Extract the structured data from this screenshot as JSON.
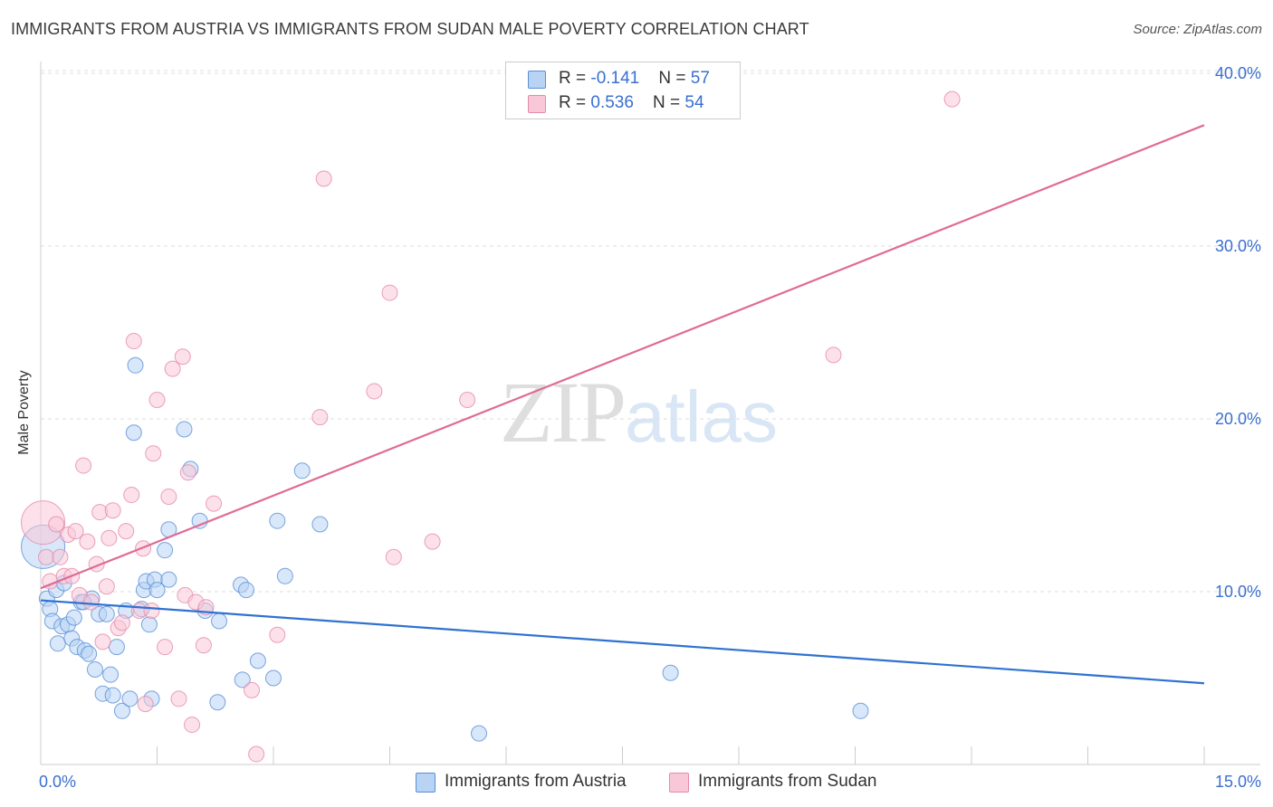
{
  "title": "IMMIGRANTS FROM AUSTRIA VS IMMIGRANTS FROM SUDAN MALE POVERTY CORRELATION CHART",
  "source": "Source: ZipAtlas.com",
  "watermark": {
    "zip": "ZIP",
    "atlas": "atlas"
  },
  "legend": {
    "austria": {
      "r_label": "R = ",
      "r_value": "-0.141",
      "n_label": "N = ",
      "n_value": "57"
    },
    "sudan": {
      "r_label": "R = ",
      "r_value": "0.536",
      "n_label": "N = ",
      "n_value": "54"
    }
  },
  "bottom_legend": {
    "austria": "Immigrants from Austria",
    "sudan": "Immigrants from Sudan"
  },
  "colors": {
    "austria_fill": "#b8d3f4",
    "austria_stroke": "#5a8fd6",
    "austria_line": "#2f72d0",
    "sudan_fill": "#f9c8d8",
    "sudan_stroke": "#e58aa8",
    "sudan_line": "#e06b96",
    "axis_label_blue": "#3a6fd0",
    "grid": "#dddddd"
  },
  "chart_data": {
    "type": "scatter",
    "title": "IMMIGRANTS FROM AUSTRIA VS IMMIGRANTS FROM SUDAN MALE POVERTY CORRELATION CHART",
    "xlabel": "",
    "ylabel": "Male Poverty",
    "xlim": [
      0,
      15
    ],
    "ylim": [
      0,
      41
    ],
    "x_tick_labels": [
      {
        "value": 0,
        "label": "0.0%"
      },
      {
        "value": 15,
        "label": "15.0%"
      }
    ],
    "y_tick_labels": [
      {
        "value": 10,
        "label": "10.0%"
      },
      {
        "value": 20,
        "label": "20.0%"
      },
      {
        "value": 30,
        "label": "30.0%"
      },
      {
        "value": 40,
        "label": "40.0%"
      }
    ],
    "grid": true,
    "legend_position": "top-center",
    "series": [
      {
        "name": "Immigrants from Austria",
        "trend": {
          "x": [
            0,
            15
          ],
          "y": [
            9.5,
            4.7
          ]
        },
        "points": [
          {
            "x": 0.03,
            "y": 12.6,
            "big": true
          },
          {
            "x": 0.08,
            "y": 9.6
          },
          {
            "x": 0.12,
            "y": 9.0
          },
          {
            "x": 0.15,
            "y": 8.3
          },
          {
            "x": 0.2,
            "y": 10.1
          },
          {
            "x": 0.22,
            "y": 7.0
          },
          {
            "x": 0.27,
            "y": 8.0
          },
          {
            "x": 0.3,
            "y": 10.5
          },
          {
            "x": 0.35,
            "y": 8.1
          },
          {
            "x": 0.4,
            "y": 7.3
          },
          {
            "x": 0.43,
            "y": 8.5
          },
          {
            "x": 0.47,
            "y": 6.8
          },
          {
            "x": 0.52,
            "y": 9.4
          },
          {
            "x": 0.57,
            "y": 6.6
          },
          {
            "x": 0.62,
            "y": 6.4
          },
          {
            "x": 0.66,
            "y": 9.6
          },
          {
            "x": 0.7,
            "y": 5.5
          },
          {
            "x": 0.75,
            "y": 8.7
          },
          {
            "x": 0.8,
            "y": 4.1
          },
          {
            "x": 0.85,
            "y": 8.7
          },
          {
            "x": 0.9,
            "y": 5.2
          },
          {
            "x": 0.93,
            "y": 4.0
          },
          {
            "x": 0.98,
            "y": 6.8
          },
          {
            "x": 1.05,
            "y": 3.1
          },
          {
            "x": 1.1,
            "y": 8.9
          },
          {
            "x": 1.15,
            "y": 3.8
          },
          {
            "x": 1.2,
            "y": 19.2
          },
          {
            "x": 1.22,
            "y": 23.1
          },
          {
            "x": 1.3,
            "y": 9.0
          },
          {
            "x": 1.33,
            "y": 10.1
          },
          {
            "x": 1.36,
            "y": 10.6
          },
          {
            "x": 1.4,
            "y": 8.1
          },
          {
            "x": 1.43,
            "y": 3.8
          },
          {
            "x": 1.47,
            "y": 10.7
          },
          {
            "x": 1.5,
            "y": 10.1
          },
          {
            "x": 1.6,
            "y": 12.4
          },
          {
            "x": 1.65,
            "y": 13.6
          },
          {
            "x": 1.65,
            "y": 10.7
          },
          {
            "x": 1.85,
            "y": 19.4
          },
          {
            "x": 1.93,
            "y": 17.1
          },
          {
            "x": 2.05,
            "y": 14.1
          },
          {
            "x": 2.12,
            "y": 8.9
          },
          {
            "x": 2.28,
            "y": 3.6
          },
          {
            "x": 2.3,
            "y": 8.3
          },
          {
            "x": 2.58,
            "y": 10.4
          },
          {
            "x": 2.6,
            "y": 4.9
          },
          {
            "x": 2.65,
            "y": 10.1
          },
          {
            "x": 2.8,
            "y": 6.0
          },
          {
            "x": 3.0,
            "y": 5.0
          },
          {
            "x": 3.05,
            "y": 14.1
          },
          {
            "x": 3.15,
            "y": 10.9
          },
          {
            "x": 3.37,
            "y": 17.0
          },
          {
            "x": 3.6,
            "y": 13.9
          },
          {
            "x": 5.65,
            "y": 1.8
          },
          {
            "x": 8.12,
            "y": 5.3
          },
          {
            "x": 10.57,
            "y": 3.1
          },
          {
            "x": 0.55,
            "y": 9.4
          }
        ]
      },
      {
        "name": "Immigrants from Sudan",
        "trend": {
          "x": [
            0,
            15
          ],
          "y": [
            10.2,
            37.0
          ]
        },
        "points": [
          {
            "x": 0.03,
            "y": 14.0,
            "big": true
          },
          {
            "x": 0.07,
            "y": 12.0
          },
          {
            "x": 0.12,
            "y": 10.6
          },
          {
            "x": 0.2,
            "y": 13.9
          },
          {
            "x": 0.25,
            "y": 12.0
          },
          {
            "x": 0.3,
            "y": 10.9
          },
          {
            "x": 0.35,
            "y": 13.3
          },
          {
            "x": 0.4,
            "y": 10.9
          },
          {
            "x": 0.45,
            "y": 13.5
          },
          {
            "x": 0.5,
            "y": 9.8
          },
          {
            "x": 0.55,
            "y": 17.3
          },
          {
            "x": 0.6,
            "y": 12.9
          },
          {
            "x": 0.65,
            "y": 9.4
          },
          {
            "x": 0.72,
            "y": 11.6
          },
          {
            "x": 0.76,
            "y": 14.6
          },
          {
            "x": 0.8,
            "y": 7.1
          },
          {
            "x": 0.85,
            "y": 10.3
          },
          {
            "x": 0.88,
            "y": 13.1
          },
          {
            "x": 0.93,
            "y": 14.7
          },
          {
            "x": 1.0,
            "y": 7.9
          },
          {
            "x": 1.05,
            "y": 8.2
          },
          {
            "x": 1.1,
            "y": 13.5
          },
          {
            "x": 1.17,
            "y": 15.6
          },
          {
            "x": 1.2,
            "y": 24.5
          },
          {
            "x": 1.27,
            "y": 8.9
          },
          {
            "x": 1.32,
            "y": 12.5
          },
          {
            "x": 1.35,
            "y": 3.5
          },
          {
            "x": 1.43,
            "y": 8.9
          },
          {
            "x": 1.45,
            "y": 18.0
          },
          {
            "x": 1.5,
            "y": 21.1
          },
          {
            "x": 1.6,
            "y": 6.8
          },
          {
            "x": 1.65,
            "y": 15.5
          },
          {
            "x": 1.7,
            "y": 22.9
          },
          {
            "x": 1.78,
            "y": 3.8
          },
          {
            "x": 1.83,
            "y": 23.6
          },
          {
            "x": 1.86,
            "y": 9.8
          },
          {
            "x": 1.9,
            "y": 16.9
          },
          {
            "x": 1.95,
            "y": 2.3
          },
          {
            "x": 2.0,
            "y": 9.4
          },
          {
            "x": 2.1,
            "y": 6.9
          },
          {
            "x": 2.13,
            "y": 9.1
          },
          {
            "x": 2.23,
            "y": 15.1
          },
          {
            "x": 2.72,
            "y": 4.3
          },
          {
            "x": 2.78,
            "y": 0.6
          },
          {
            "x": 3.05,
            "y": 7.5
          },
          {
            "x": 3.6,
            "y": 20.1
          },
          {
            "x": 3.65,
            "y": 33.9
          },
          {
            "x": 4.3,
            "y": 21.6
          },
          {
            "x": 4.5,
            "y": 27.3
          },
          {
            "x": 4.55,
            "y": 12.0
          },
          {
            "x": 5.05,
            "y": 12.9
          },
          {
            "x": 5.5,
            "y": 21.1
          },
          {
            "x": 10.22,
            "y": 23.7
          },
          {
            "x": 11.75,
            "y": 38.5
          }
        ]
      }
    ]
  }
}
